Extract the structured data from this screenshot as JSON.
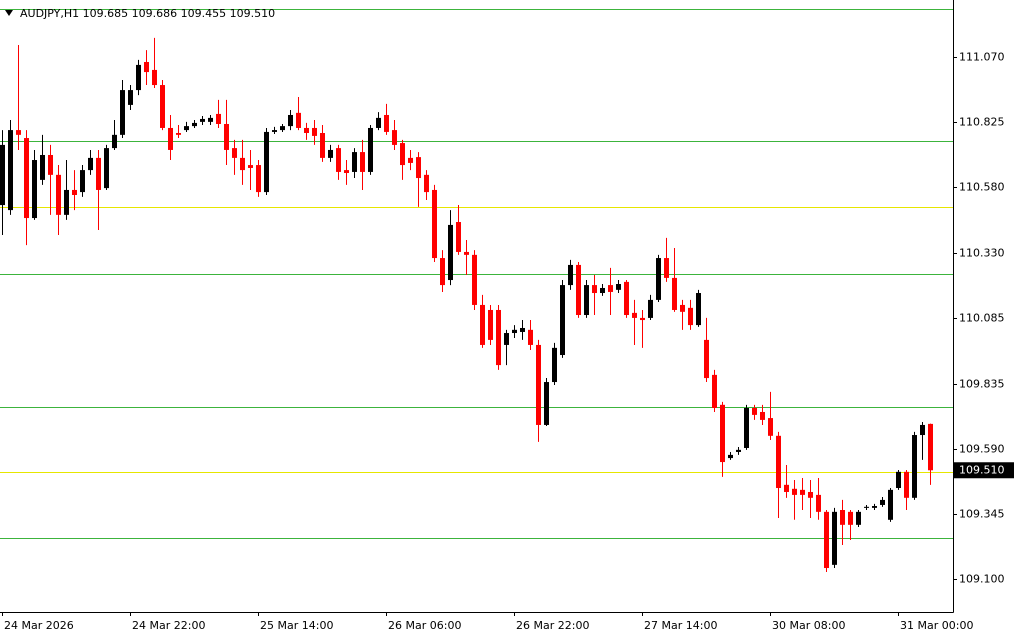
{
  "chart_data": {
    "type": "candlestick",
    "symbol": "AUDJPY,H1",
    "header_values": [
      109.685,
      109.686,
      109.455,
      {
        "value": 109.51,
        "label": "109.510"
      }
    ],
    "bull_color": "#000000",
    "bear_color": "#ff0000",
    "categories": [
      "24 Mar 2026",
      null,
      null,
      null,
      null,
      null,
      null,
      null,
      null,
      null,
      null,
      null,
      null,
      null,
      null,
      null,
      "24 Mar 22:00",
      null,
      null,
      null,
      null,
      null,
      null,
      null,
      null,
      null,
      null,
      null,
      null,
      null,
      null,
      null,
      "25 Mar 14:00",
      null,
      null,
      null,
      null,
      null,
      null,
      null,
      null,
      null,
      null,
      null,
      null,
      null,
      null,
      null,
      "26 Mar 06:00",
      null,
      null,
      null,
      null,
      null,
      null,
      null,
      null,
      null,
      null,
      null,
      null,
      null,
      null,
      null,
      "26 Mar 22:00",
      null,
      null,
      null,
      null,
      null,
      null,
      null,
      null,
      null,
      null,
      null,
      null,
      null,
      null,
      null,
      "27 Mar 14:00",
      null,
      null,
      null,
      null,
      null,
      null,
      null,
      null,
      null,
      null,
      null,
      null,
      null,
      null,
      null,
      "30 Mar 08:00",
      null,
      null,
      null,
      null,
      null,
      null,
      null,
      null,
      null,
      null,
      null,
      null,
      null,
      null,
      null,
      "31 Mar 00:00",
      null,
      null,
      null,
      null
    ],
    "open": [
      110.511,
      110.492,
      110.794,
      110.764,
      110.462,
      110.606,
      110.7,
      110.625,
      110.474,
      110.568,
      110.56,
      110.643,
      110.689,
      110.575,
      110.726,
      110.776,
      110.889,
      110.945,
      111.051,
      111.021,
      110.964,
      110.802,
      110.783,
      110.794,
      110.809,
      110.825,
      110.825,
      110.855,
      110.817,
      110.726,
      110.689,
      110.662,
      110.662,
      110.56,
      110.787,
      110.794,
      110.809,
      110.859,
      110.802,
      110.802,
      110.783,
      110.689,
      110.726,
      110.643,
      110.636,
      110.711,
      110.636,
      110.802,
      110.851,
      110.794,
      110.745,
      110.689,
      110.692,
      110.625,
      110.568,
      110.311,
      110.228,
      110.447,
      110.334,
      110.323,
      110.134,
      110.115,
      110.115,
      109.983,
      110.028,
      110.032,
      110.04,
      109.983,
      109.681,
      109.843,
      109.945,
      110.209,
      110.285,
      110.096,
      110.209,
      110.179,
      110.209,
      110.191,
      110.221,
      110.104,
      110.085,
      110.085,
      110.153,
      110.311,
      110.236,
      110.134,
      110.123,
      110.058,
      110.002,
      109.87,
      109.757,
      109.556,
      109.579,
      109.594,
      109.745,
      109.73,
      109.707,
      109.64,
      109.455,
      109.44,
      109.436,
      109.428,
      109.417,
      109.353,
      109.153,
      109.36,
      109.353,
      109.304,
      109.368,
      109.368,
      109.379,
      109.323,
      109.443,
      109.504,
      109.406,
      109.643,
      109.685
    ],
    "high": [
      110.794,
      110.832,
      111.115,
      110.794,
      110.719,
      110.776,
      110.738,
      110.662,
      110.681,
      110.643,
      110.662,
      110.719,
      110.719,
      110.738,
      110.832,
      110.983,
      110.964,
      111.059,
      111.096,
      111.142,
      110.983,
      110.851,
      110.813,
      110.825,
      110.832,
      110.847,
      110.851,
      110.908,
      110.908,
      110.757,
      110.757,
      110.719,
      110.681,
      110.802,
      110.806,
      110.817,
      110.87,
      110.919,
      110.821,
      110.832,
      110.813,
      110.738,
      110.738,
      110.681,
      110.726,
      110.757,
      110.813,
      110.862,
      110.893,
      110.832,
      110.757,
      110.719,
      110.711,
      110.643,
      110.587,
      110.341,
      110.492,
      110.511,
      110.379,
      110.341,
      110.172,
      110.134,
      110.134,
      110.04,
      110.058,
      110.077,
      110.077,
      110.002,
      109.858,
      109.991,
      110.228,
      110.304,
      110.296,
      110.228,
      110.247,
      110.213,
      110.274,
      110.228,
      110.228,
      110.153,
      110.115,
      110.172,
      110.323,
      110.387,
      110.349,
      110.153,
      110.153,
      110.191,
      110.085,
      109.889,
      109.768,
      109.579,
      109.598,
      109.757,
      109.757,
      109.757,
      109.806,
      109.655,
      109.53,
      109.473,
      109.481,
      109.473,
      109.481,
      109.36,
      109.368,
      109.398,
      109.36,
      109.36,
      109.379,
      109.383,
      109.409,
      109.443,
      109.511,
      109.511,
      109.655,
      109.692,
      109.686
    ],
    "low": [
      110.398,
      110.474,
      110.719,
      110.36,
      110.455,
      110.587,
      110.474,
      110.398,
      110.455,
      110.492,
      110.542,
      110.625,
      110.417,
      110.568,
      110.719,
      110.764,
      110.87,
      110.926,
      110.964,
      110.953,
      110.794,
      110.681,
      110.764,
      110.787,
      110.802,
      110.813,
      110.813,
      110.802,
      110.662,
      110.625,
      110.587,
      110.568,
      110.542,
      110.549,
      110.779,
      110.787,
      110.794,
      110.794,
      110.757,
      110.738,
      110.674,
      110.674,
      110.606,
      110.587,
      110.613,
      110.568,
      110.625,
      110.794,
      110.776,
      110.719,
      110.606,
      110.643,
      110.504,
      110.53,
      110.296,
      110.183,
      110.209,
      110.323,
      110.247,
      110.115,
      109.972,
      109.983,
      109.889,
      109.907,
      110.009,
      110.002,
      109.964,
      109.617,
      109.677,
      109.832,
      109.934,
      110.191,
      110.085,
      110.085,
      110.096,
      110.168,
      110.096,
      110.179,
      110.085,
      109.983,
      109.972,
      110.077,
      110.145,
      110.221,
      110.108,
      110.04,
      110.04,
      110.051,
      109.843,
      109.73,
      109.485,
      109.549,
      109.568,
      109.587,
      109.7,
      109.681,
      109.624,
      109.33,
      109.406,
      109.323,
      109.36,
      109.33,
      109.323,
      109.126,
      109.141,
      109.228,
      109.247,
      109.296,
      109.36,
      109.36,
      109.372,
      109.315,
      109.436,
      109.36,
      109.398,
      109.549,
      109.455
    ],
    "close": [
      110.738,
      110.794,
      110.776,
      110.462,
      110.681,
      110.7,
      110.625,
      110.474,
      110.568,
      110.549,
      110.643,
      110.689,
      110.568,
      110.726,
      110.776,
      110.945,
      110.945,
      111.04,
      111.013,
      110.964,
      110.802,
      110.719,
      110.776,
      110.809,
      110.821,
      110.836,
      110.84,
      110.817,
      110.719,
      110.689,
      110.643,
      110.651,
      110.56,
      110.787,
      110.794,
      110.809,
      110.851,
      110.802,
      110.783,
      110.772,
      110.689,
      110.719,
      110.636,
      110.632,
      110.711,
      110.636,
      110.802,
      110.84,
      110.787,
      110.738,
      110.662,
      110.67,
      110.613,
      110.56,
      110.311,
      110.209,
      110.436,
      110.334,
      110.323,
      110.134,
      109.983,
      110.002,
      109.907,
      110.028,
      110.04,
      110.047,
      109.983,
      109.681,
      109.843,
      109.972,
      110.209,
      110.285,
      110.096,
      110.209,
      110.179,
      110.198,
      110.183,
      110.213,
      110.096,
      110.085,
      110.077,
      110.153,
      110.311,
      110.236,
      110.115,
      110.108,
      110.058,
      110.179,
      109.858,
      109.745,
      109.541,
      109.568,
      109.587,
      109.745,
      109.719,
      109.7,
      109.64,
      109.443,
      109.428,
      109.417,
      109.417,
      109.406,
      109.353,
      109.141,
      109.353,
      109.304,
      109.304,
      109.353,
      109.372,
      109.375,
      109.398,
      109.436,
      109.504,
      109.406,
      109.643,
      109.681,
      109.51
    ],
    "ylim": [
      108.975,
      111.285
    ],
    "yticks": [
      {
        "value": 111.07,
        "label": "111.070"
      },
      110.825,
      {
        "value": 110.58,
        "label": "110.580"
      },
      {
        "value": 110.33,
        "label": "110.330"
      },
      110.085,
      109.835,
      {
        "value": 109.59,
        "label": "109.590"
      },
      109.345,
      {
        "value": 109.1,
        "label": "109.100"
      }
    ],
    "levels": [
      {
        "value": 111.251,
        "color": "#3cb43c"
      },
      {
        "value": 110.753,
        "color": "#3cb43c"
      },
      {
        "value": 110.504,
        "color": "#e6e600"
      },
      {
        "value": 110.251,
        "color": "#3cb43c"
      },
      {
        "value": 109.749,
        "color": "#3cb43c"
      },
      {
        "value": 109.504,
        "color": "#e6e600"
      },
      {
        "value": 109.255,
        "color": "#3cb43c"
      }
    ],
    "current_price": {
      "value": 109.51,
      "label": "109.510"
    }
  }
}
